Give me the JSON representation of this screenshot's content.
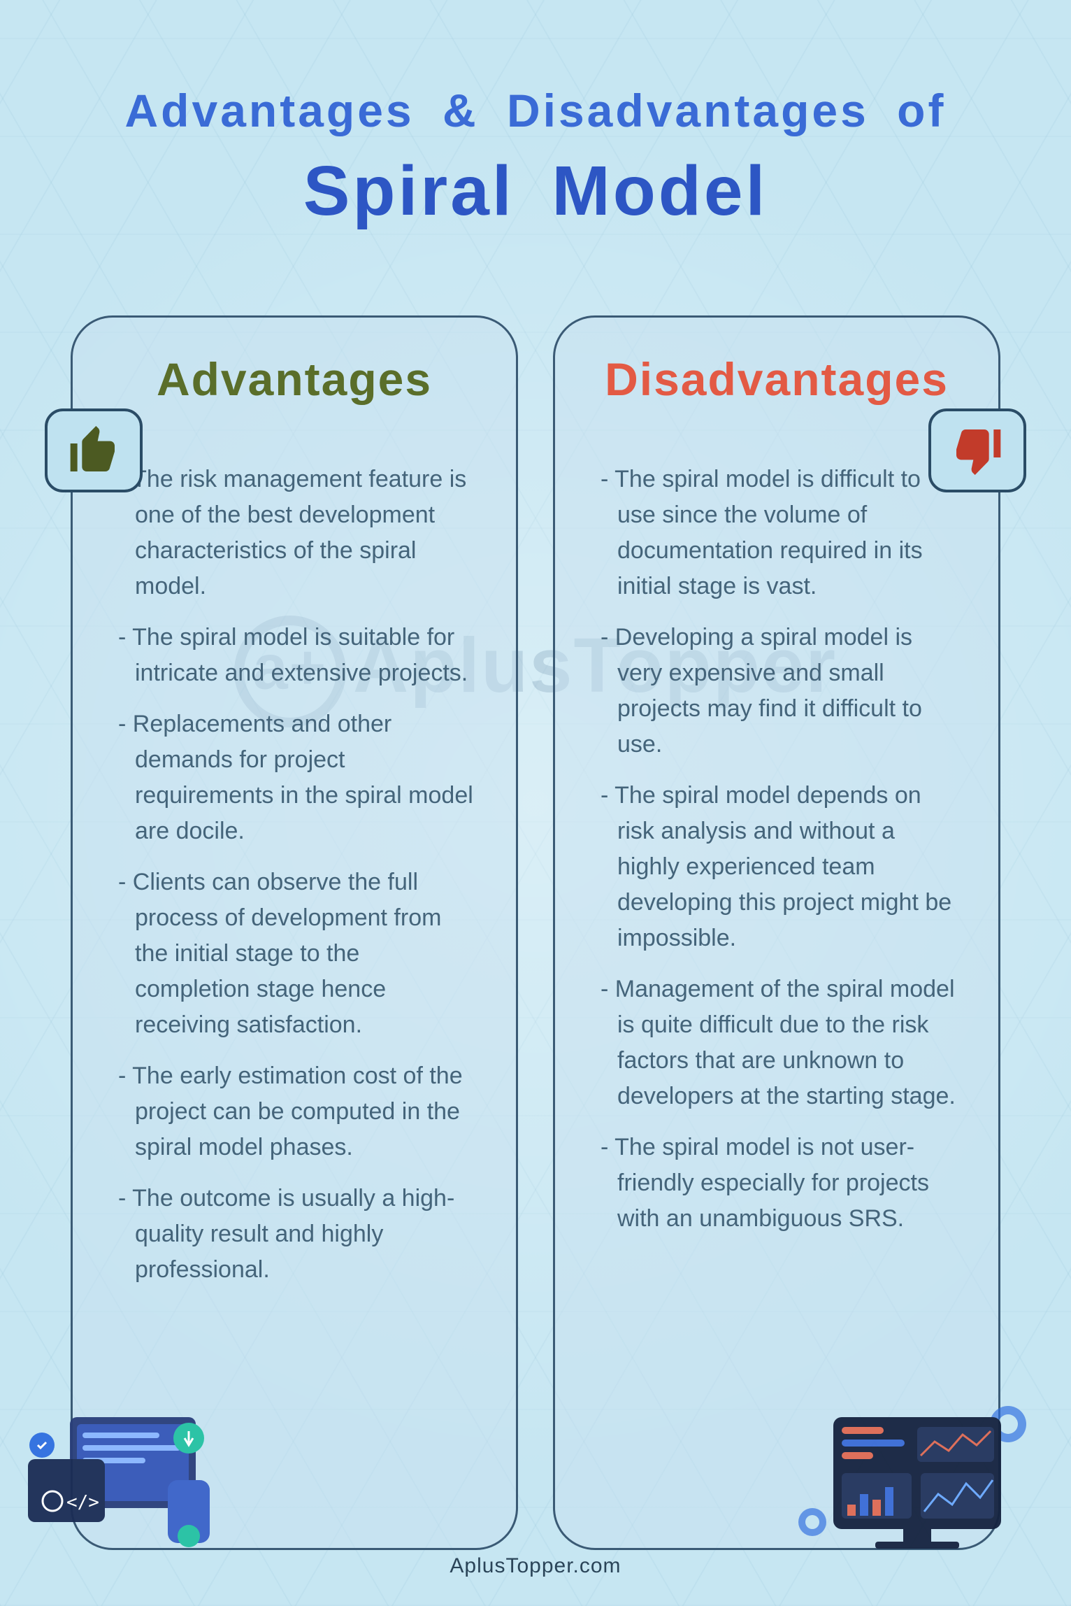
{
  "title": {
    "line1": "Advantages & Disadvantages of",
    "line2": "Spiral Model",
    "line1_color": "#3a6bd6",
    "line2_color": "#2d56c4",
    "line1_fontsize": 66,
    "line2_fontsize": 100
  },
  "background": {
    "base_color": "#c6e6f2",
    "hex_line_color": "rgba(100,160,190,.08)"
  },
  "card_style": {
    "border_color": "#3a5a75",
    "border_radius": 60,
    "fill": "rgba(200,225,240,.45)",
    "body_text_color": "#44647a",
    "body_fontsize": 34
  },
  "advantages": {
    "heading": "Advantages",
    "heading_color": "#5a6e2a",
    "thumb_icon": "thumbs-up",
    "thumb_color": "#4c5a22",
    "items": [
      "The risk management feature is one of the best development characteristics of the spiral model.",
      "The spiral model is suitable for intricate and extensive projects.",
      "Replacements and other demands for project requirements in the spiral model are docile.",
      "Clients can observe the full process of development from the initial stage to the completion stage hence receiving satisfaction.",
      "The early estimation cost of the project can be computed in the spiral model phases.",
      "The outcome is usually a high-quality result and highly professional."
    ]
  },
  "disadvantages": {
    "heading": "Disadvantages",
    "heading_color": "#e35a44",
    "thumb_icon": "thumbs-down",
    "thumb_color": "#c23b2a",
    "items": [
      "The spiral model is difficult to use since the volume of documentation required in its initial stage is vast.",
      "Developing a spiral model is very expensive and small projects may find it difficult to use.",
      "The spiral model depends on risk analysis and without a highly experienced team developing this project might be impossible.",
      "Management of the spiral model is quite difficult due to the risk factors that are unknown to developers at the starting stage.",
      "The spiral model is not user-friendly especially for projects with an unambiguous SRS."
    ]
  },
  "watermark": {
    "text": "AplusTopper"
  },
  "footer": {
    "text": "AplusTopper.com",
    "color": "#2a4458"
  },
  "decorations": {
    "left_icon": "dev-monitors",
    "right_icon": "dashboard-monitor",
    "gear_color": "#2f6ee0",
    "monitor_dark": "#1a2a4a"
  }
}
